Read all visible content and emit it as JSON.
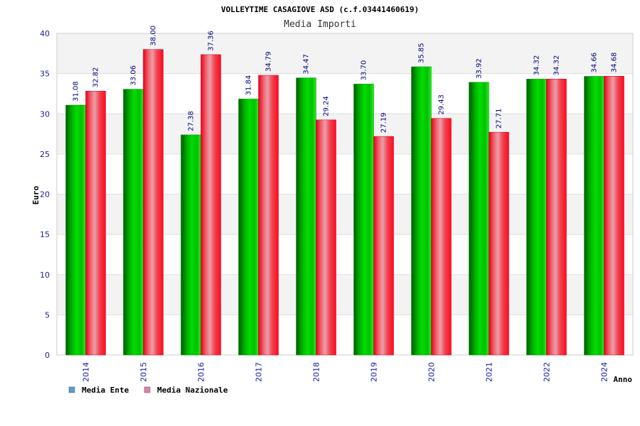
{
  "chart_data": {
    "type": "bar",
    "title": "VOLLEYTIME CASAGIOVE ASD (c.f.03441460619)",
    "subtitle": "Media Importi",
    "xlabel": "Anno",
    "ylabel": "Euro",
    "ylim": [
      0,
      40
    ],
    "yticks": [
      0,
      5,
      10,
      15,
      20,
      25,
      30,
      35,
      40
    ],
    "grid": true,
    "legend_position": "bottom-left",
    "categories": [
      "2014",
      "2015",
      "2016",
      "2017",
      "2018",
      "2019",
      "2020",
      "2021",
      "2022",
      "2024"
    ],
    "series": [
      {
        "name": "Media Ente",
        "color": "#00aa00",
        "legend_color": "#5b9bd5",
        "values": [
          31.08,
          33.06,
          27.38,
          31.84,
          34.47,
          33.7,
          35.85,
          33.92,
          34.32,
          34.66
        ],
        "labels": [
          "31.08",
          "33.06",
          "27.38",
          "31.84",
          "34.47",
          "33.70",
          "35.85",
          "33.92",
          "34.32",
          "34.66"
        ]
      },
      {
        "name": "Media Nazionale",
        "color": "#ee1122",
        "legend_color": "#e07fb0",
        "values": [
          32.82,
          38.0,
          37.36,
          34.79,
          29.24,
          27.19,
          29.43,
          27.71,
          34.32,
          34.68
        ],
        "labels": [
          "32.82",
          "38.00",
          "37.36",
          "34.79",
          "29.24",
          "27.19",
          "29.43",
          "27.71",
          "34.32",
          "34.68"
        ]
      }
    ]
  }
}
